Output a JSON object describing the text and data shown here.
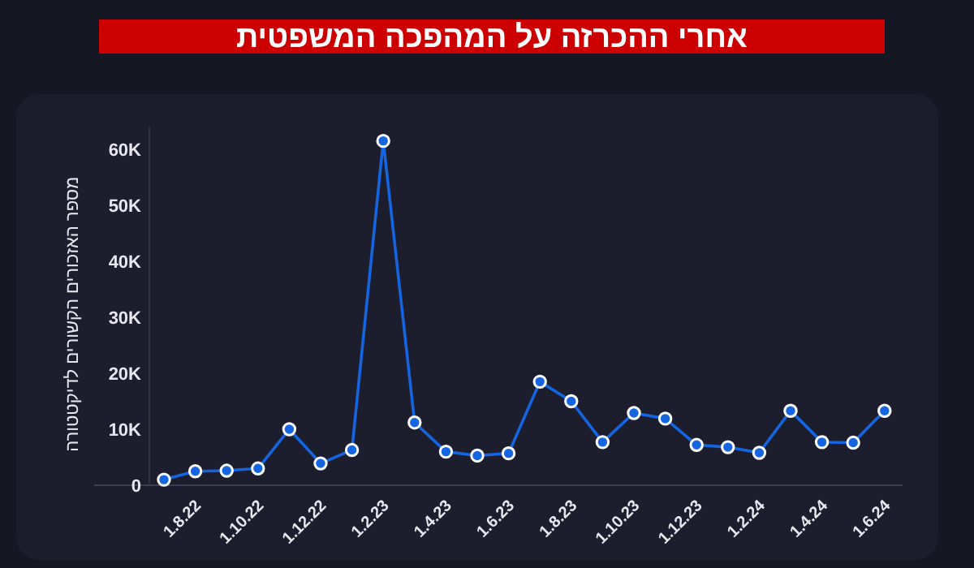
{
  "chart_data": {
    "type": "line",
    "title": "אחרי ההכרזה על המהפכה המשפטית",
    "ylabel": "מספר האזכורים הקשורים לדיקטטורה",
    "categories": [
      null,
      "1.8.22",
      null,
      "1.10.22",
      null,
      "1.12.22",
      null,
      "1.2.23",
      null,
      "1.4.23",
      null,
      "1.6.23",
      null,
      "1.8.23",
      null,
      "1.10.23",
      null,
      "1.12.23",
      null,
      "1.2.24",
      null,
      "1.4.24",
      null,
      "1.6.24"
    ],
    "series": [
      {
        "color": "#1565e0",
        "values": [
          1000,
          2500,
          2600,
          3000,
          10000,
          3900,
          6300,
          61500,
          11200,
          6000,
          5300,
          5700,
          18500,
          15000,
          7700,
          12900,
          11900,
          7200,
          6800,
          5800,
          13300,
          7700,
          7600,
          13300
        ]
      }
    ],
    "ylim": [
      0,
      64000
    ],
    "yticks": [
      0,
      {
        "value": 10000,
        "label": "10K"
      },
      {
        "value": 20000,
        "label": "20K"
      },
      {
        "value": 30000,
        "label": "30K"
      },
      {
        "value": 40000,
        "label": "40K"
      },
      {
        "value": 50000,
        "label": "50K"
      },
      {
        "value": 60000,
        "label": "60K"
      }
    ],
    "marker": "circle",
    "line_style": "solid"
  }
}
